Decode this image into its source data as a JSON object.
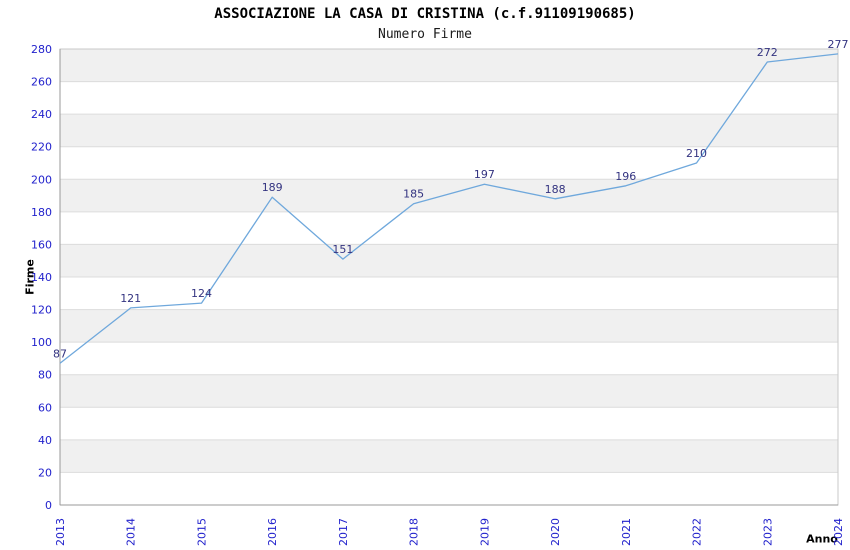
{
  "chart_data": {
    "type": "line",
    "title": "ASSOCIAZIONE LA CASA DI CRISTINA (c.f.91109190685)",
    "subtitle": "Numero Firme",
    "xlabel": "Anno",
    "ylabel": "Firme",
    "categories": [
      "2013",
      "2014",
      "2015",
      "2016",
      "2017",
      "2018",
      "2019",
      "2020",
      "2021",
      "2022",
      "2023",
      "2024"
    ],
    "values": [
      87,
      121,
      124,
      189,
      151,
      185,
      197,
      188,
      196,
      210,
      272,
      277
    ],
    "ylim": [
      0,
      280
    ],
    "ytick_step": 20,
    "grid": "horizontal-bands",
    "legend_position": "none",
    "point_labels_visible": true,
    "colors": {
      "line": "#6fa8dc",
      "value_label": "#333380",
      "tick_label": "#2222cc",
      "band_gray": "#f0f0f0",
      "band_white": "#ffffff",
      "gridline": "#dcdcdc",
      "plot_border": "#c9c9c9",
      "axis_line": "#999999"
    }
  }
}
